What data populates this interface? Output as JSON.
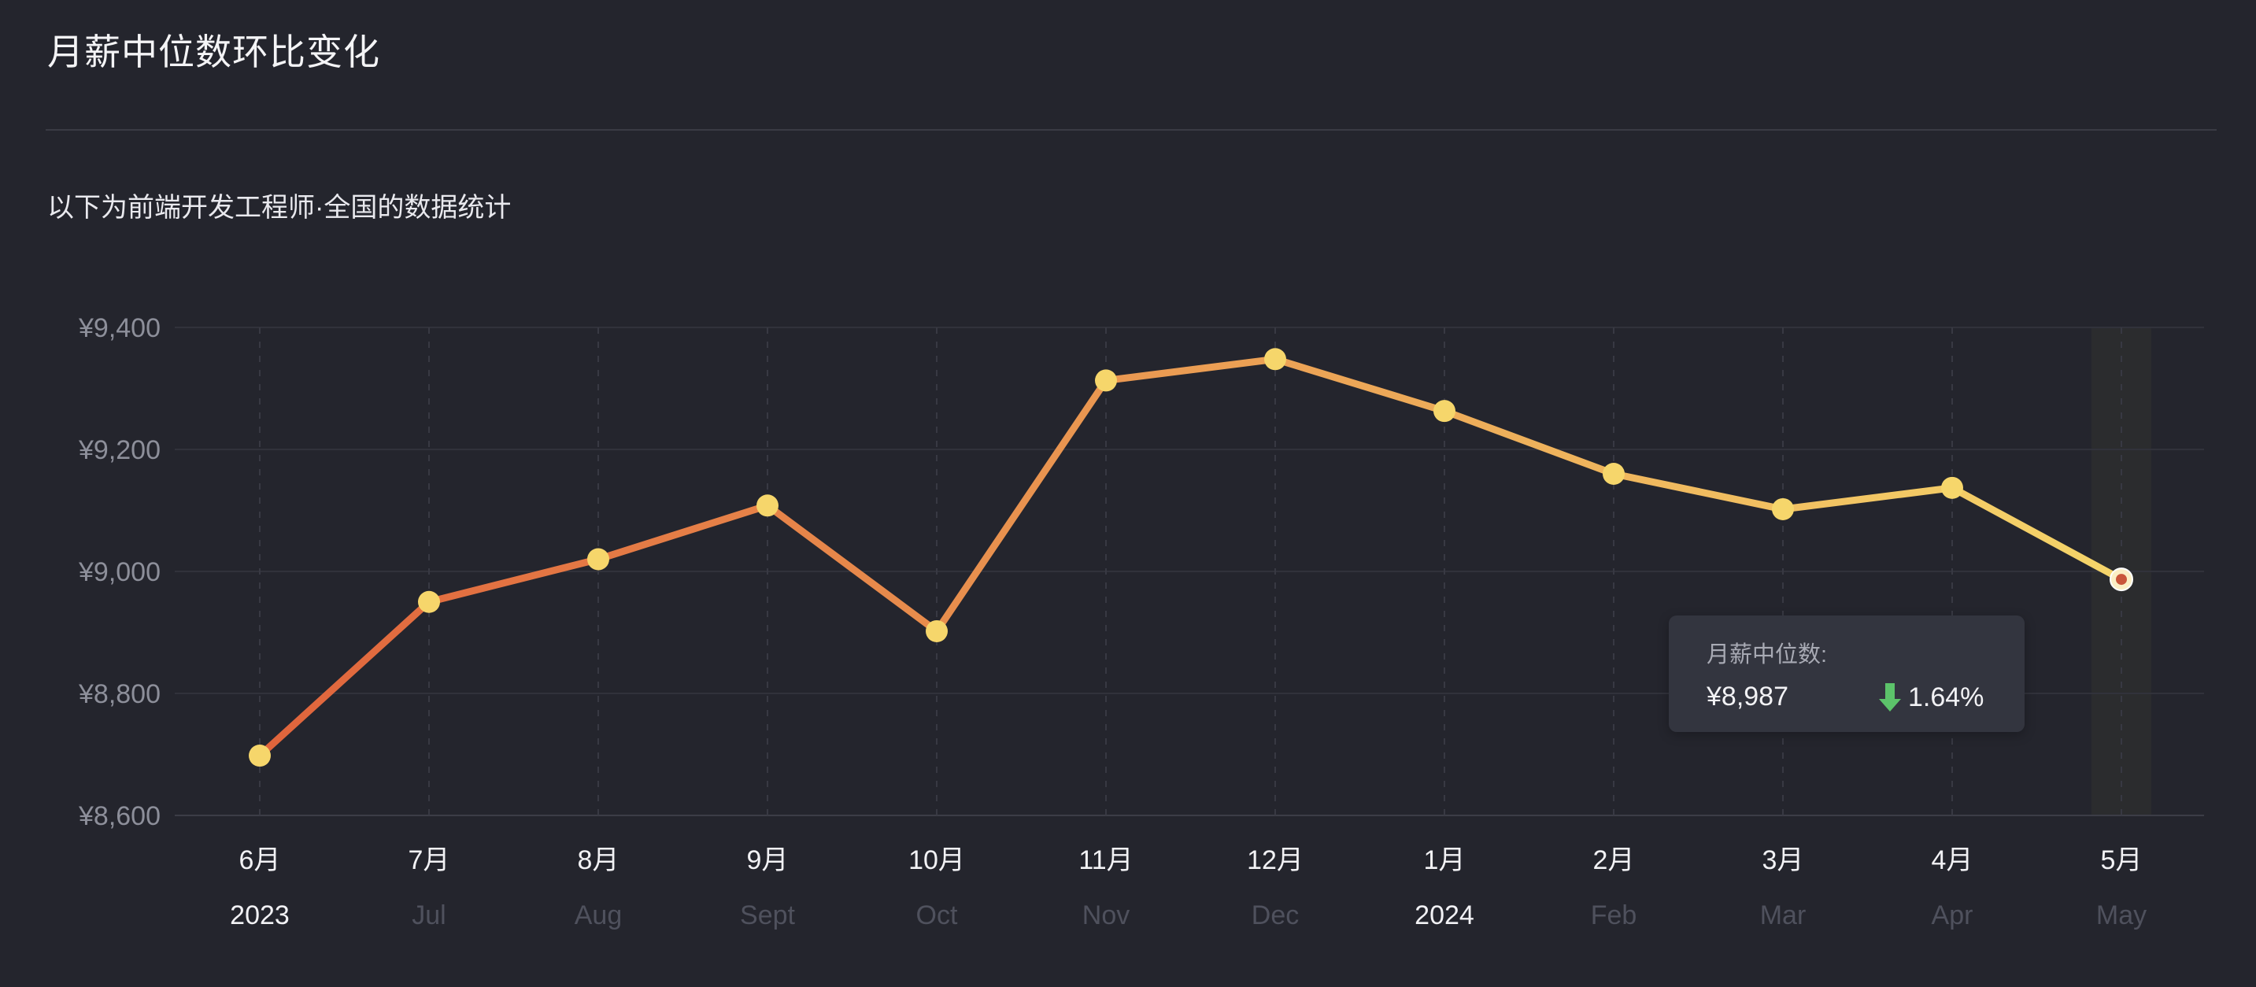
{
  "header": {
    "title": "月薪中位数环比变化"
  },
  "subtitle": "以下为前端开发工程师·全国的数据统计",
  "tooltip": {
    "label": "月薪中位数:",
    "value": "¥8,987",
    "change": "1.64%",
    "arrow_icon": "down-arrow-icon",
    "arrow_color": "#5cc36a"
  },
  "colors": {
    "line_start": "#e0643c",
    "line_end": "#f5d56a",
    "point": "#f6d66b",
    "highlight_band": "#2b2c2e"
  },
  "chart_data": {
    "type": "line",
    "title": "",
    "xlabel": "",
    "ylabel": "",
    "categories": [
      "6月",
      "7月",
      "8月",
      "9月",
      "10月",
      "11月",
      "12月",
      "1月",
      "2月",
      "3月",
      "4月",
      "5月"
    ],
    "sub_labels": [
      "2023",
      "Jul",
      "Aug",
      "Sept",
      "Oct",
      "Nov",
      "Dec",
      "2024",
      "Feb",
      "Mar",
      "Apr",
      "May"
    ],
    "sub_label_emphasis": [
      true,
      false,
      false,
      false,
      false,
      false,
      false,
      true,
      false,
      false,
      false,
      false
    ],
    "series": [
      {
        "values": [
          8698,
          8950,
          9020,
          9108,
          8902,
          9313,
          9348,
          9263,
          9160,
          9102,
          9137,
          8987
        ]
      }
    ],
    "ylim": [
      8600,
      9400
    ],
    "yticks": [
      8600,
      8800,
      9000,
      9200,
      9400
    ],
    "ytick_labels": [
      "¥8,600",
      "¥8,800",
      "¥9,000",
      "¥9,200",
      "¥9,400"
    ],
    "highlighted_index": 11,
    "grid": true,
    "legend": "none"
  }
}
